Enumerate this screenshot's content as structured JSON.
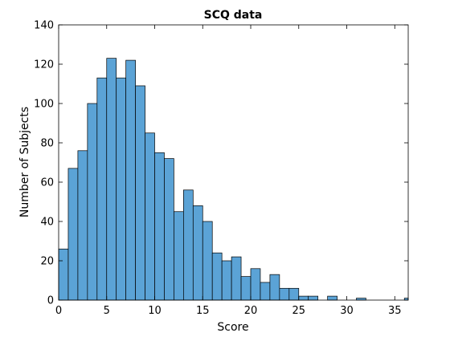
{
  "chart_data": {
    "type": "bar",
    "title": "SCQ data",
    "xlabel": "Score",
    "ylabel": "Number of Subjects",
    "xlim": [
      0,
      36.4
    ],
    "ylim": [
      0,
      140
    ],
    "xticks": [
      0,
      5,
      10,
      15,
      20,
      25,
      30,
      35
    ],
    "yticks": [
      0,
      20,
      40,
      60,
      80,
      100,
      120,
      140
    ],
    "bar_width": 1,
    "bar_color": "#5ba3d6",
    "edge_color": "#000000",
    "bins": [
      {
        "x": 0,
        "value": 26
      },
      {
        "x": 1,
        "value": 67
      },
      {
        "x": 2,
        "value": 76
      },
      {
        "x": 3,
        "value": 100
      },
      {
        "x": 4,
        "value": 113
      },
      {
        "x": 5,
        "value": 123
      },
      {
        "x": 6,
        "value": 113
      },
      {
        "x": 7,
        "value": 122
      },
      {
        "x": 8,
        "value": 109
      },
      {
        "x": 9,
        "value": 85
      },
      {
        "x": 10,
        "value": 75
      },
      {
        "x": 11,
        "value": 72
      },
      {
        "x": 12,
        "value": 45
      },
      {
        "x": 13,
        "value": 56
      },
      {
        "x": 14,
        "value": 48
      },
      {
        "x": 15,
        "value": 40
      },
      {
        "x": 16,
        "value": 24
      },
      {
        "x": 17,
        "value": 20
      },
      {
        "x": 18,
        "value": 22
      },
      {
        "x": 19,
        "value": 12
      },
      {
        "x": 20,
        "value": 16
      },
      {
        "x": 21,
        "value": 9
      },
      {
        "x": 22,
        "value": 13
      },
      {
        "x": 23,
        "value": 6
      },
      {
        "x": 24,
        "value": 6
      },
      {
        "x": 25,
        "value": 2
      },
      {
        "x": 26,
        "value": 2
      },
      {
        "x": 27,
        "value": 0
      },
      {
        "x": 28,
        "value": 2
      },
      {
        "x": 29,
        "value": 0
      },
      {
        "x": 30,
        "value": 0
      },
      {
        "x": 31,
        "value": 1
      },
      {
        "x": 32,
        "value": 0
      },
      {
        "x": 33,
        "value": 0
      },
      {
        "x": 34,
        "value": 0
      },
      {
        "x": 35,
        "value": 0
      },
      {
        "x": 36,
        "value": 1
      }
    ]
  }
}
